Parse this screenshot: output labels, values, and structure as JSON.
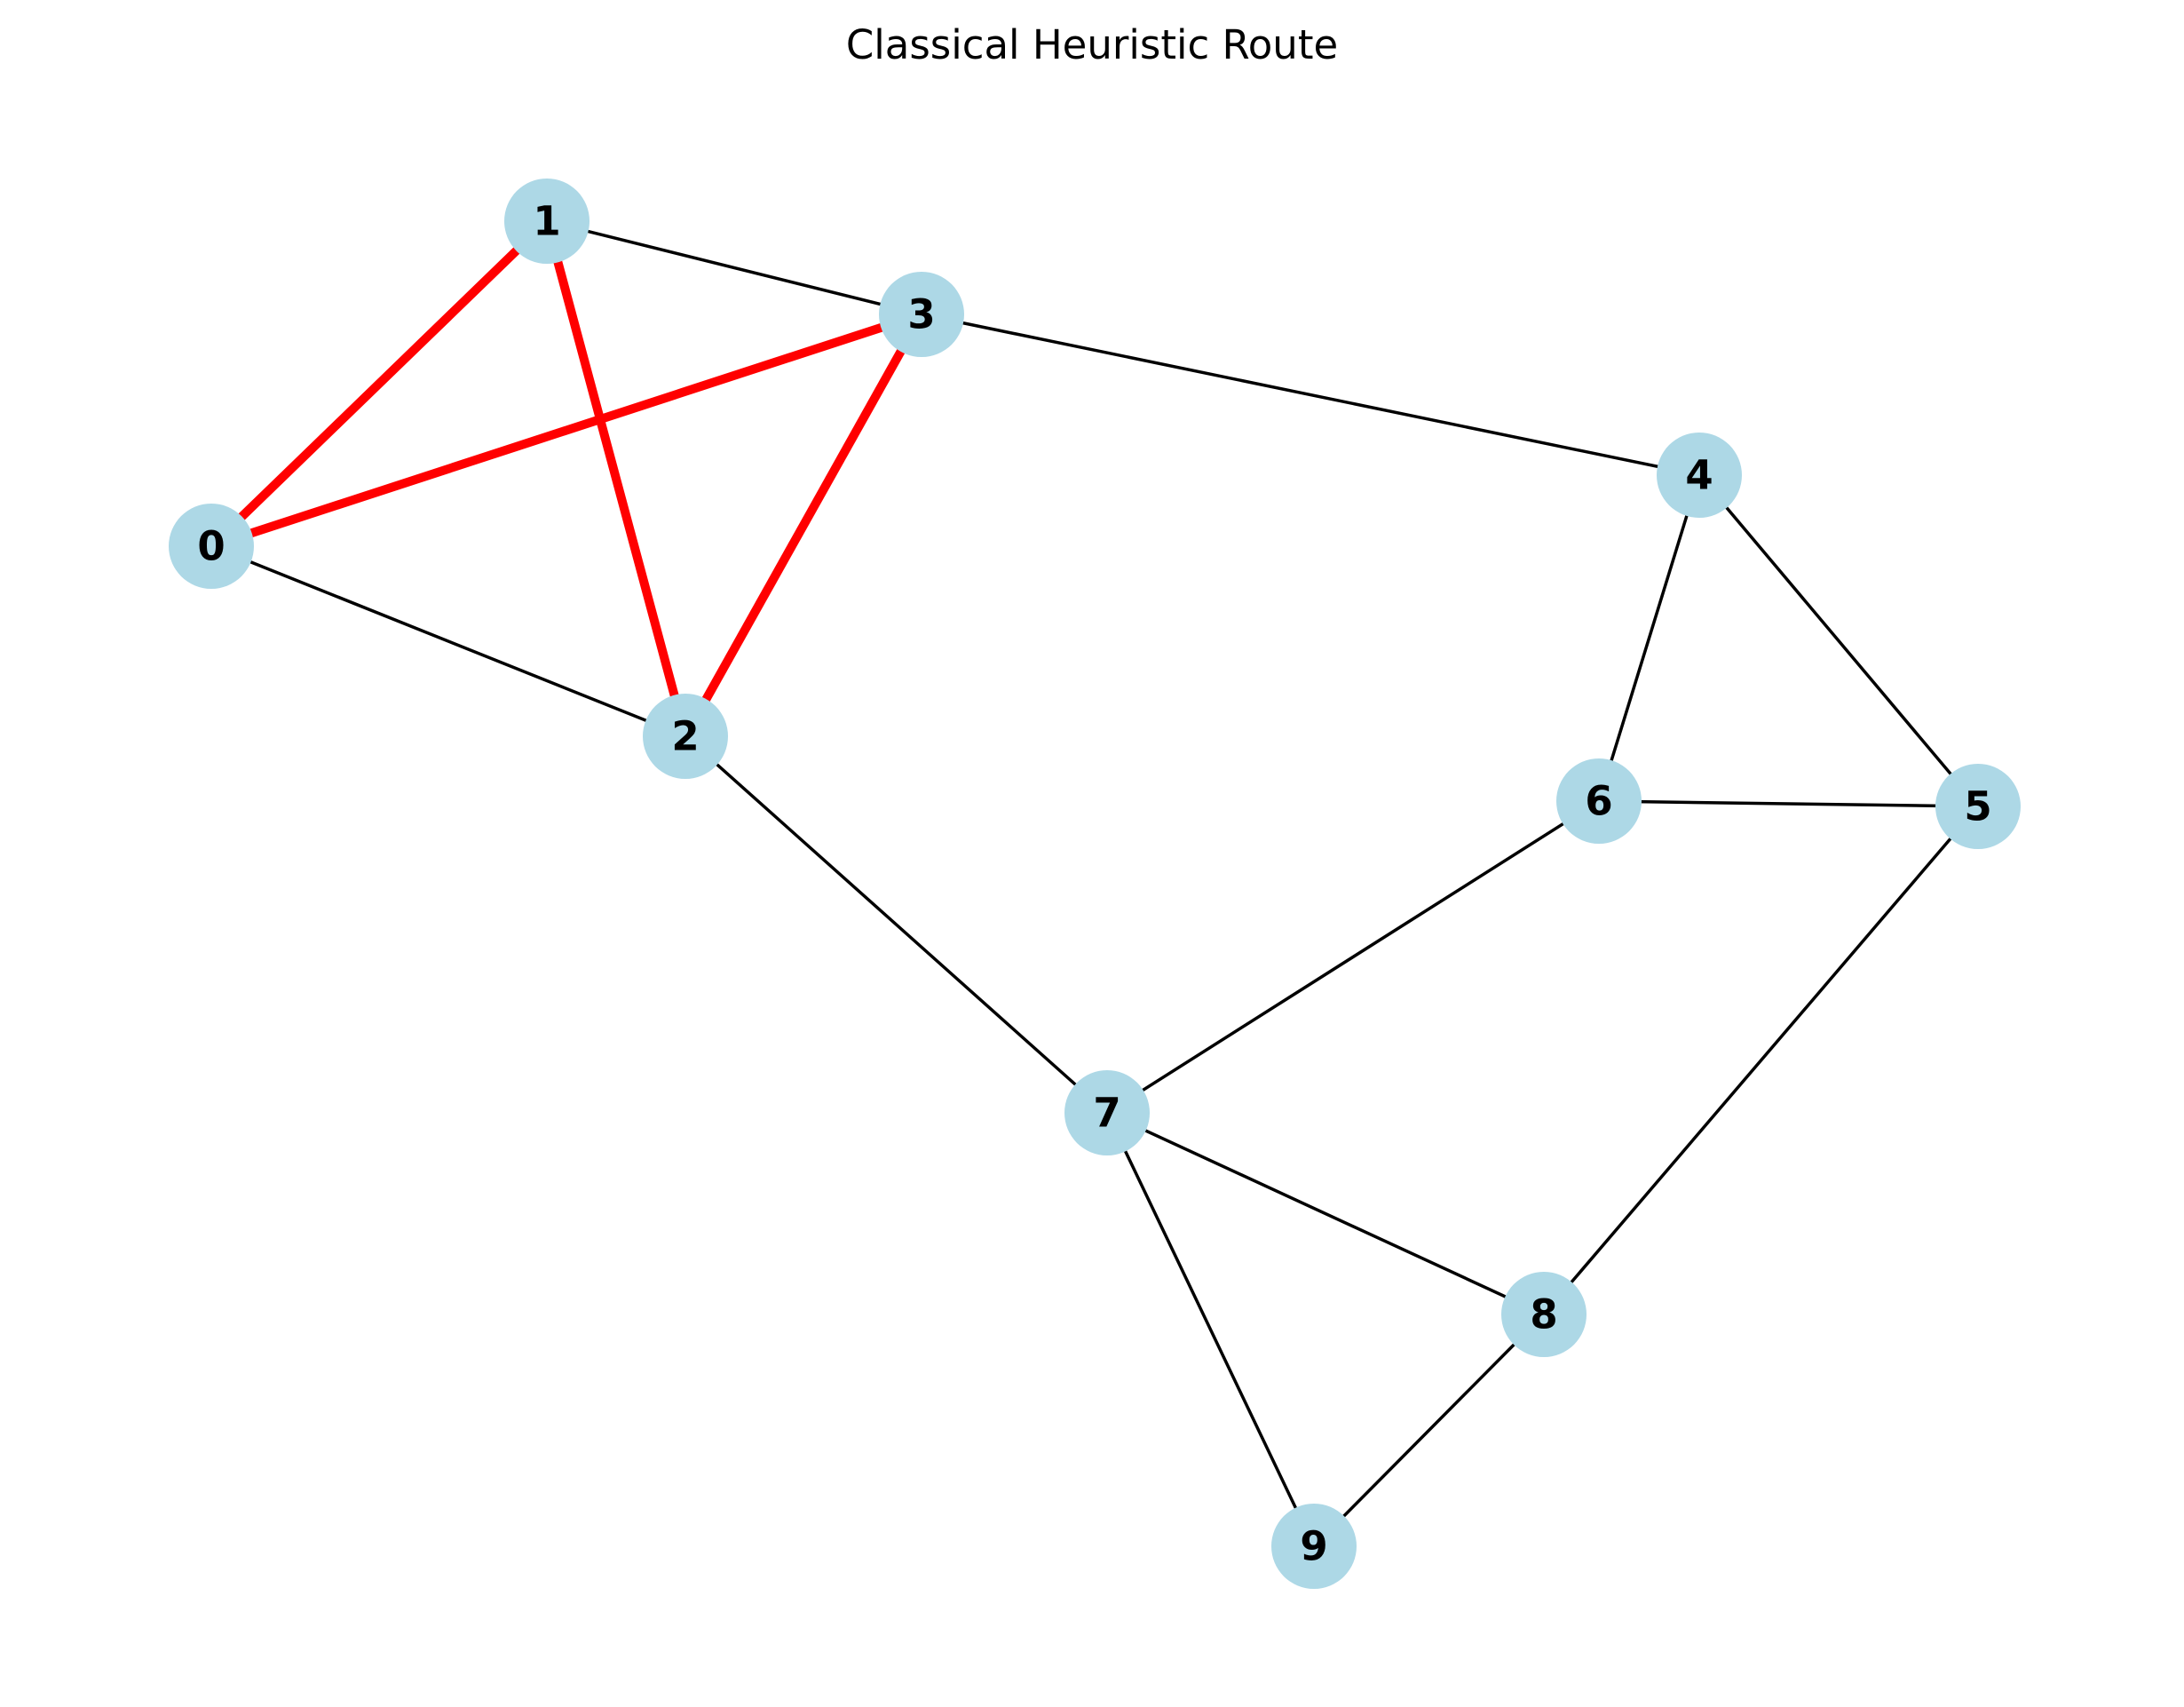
{
  "title": "Classical Heuristic Route",
  "colors": {
    "node_fill": "#add8e6",
    "edge": "#000000",
    "route_edge": "#ff0000",
    "label": "#000000",
    "background": "#ffffff"
  },
  "nodes": [
    {
      "id": "0",
      "label": "0"
    },
    {
      "id": "1",
      "label": "1"
    },
    {
      "id": "2",
      "label": "2"
    },
    {
      "id": "3",
      "label": "3"
    },
    {
      "id": "4",
      "label": "4"
    },
    {
      "id": "5",
      "label": "5"
    },
    {
      "id": "6",
      "label": "6"
    },
    {
      "id": "7",
      "label": "7"
    },
    {
      "id": "8",
      "label": "8"
    },
    {
      "id": "9",
      "label": "9"
    }
  ],
  "edges": [
    {
      "from": "0",
      "to": "1",
      "route": true
    },
    {
      "from": "0",
      "to": "3",
      "route": true
    },
    {
      "from": "1",
      "to": "2",
      "route": true
    },
    {
      "from": "2",
      "to": "3",
      "route": true
    },
    {
      "from": "0",
      "to": "2",
      "route": false
    },
    {
      "from": "1",
      "to": "3",
      "route": false
    },
    {
      "from": "3",
      "to": "4",
      "route": false
    },
    {
      "from": "2",
      "to": "7",
      "route": false
    },
    {
      "from": "4",
      "to": "6",
      "route": false
    },
    {
      "from": "4",
      "to": "5",
      "route": false
    },
    {
      "from": "6",
      "to": "5",
      "route": false
    },
    {
      "from": "6",
      "to": "7",
      "route": false
    },
    {
      "from": "5",
      "to": "8",
      "route": false
    },
    {
      "from": "7",
      "to": "8",
      "route": false
    },
    {
      "from": "7",
      "to": "9",
      "route": false
    },
    {
      "from": "8",
      "to": "9",
      "route": false
    }
  ]
}
